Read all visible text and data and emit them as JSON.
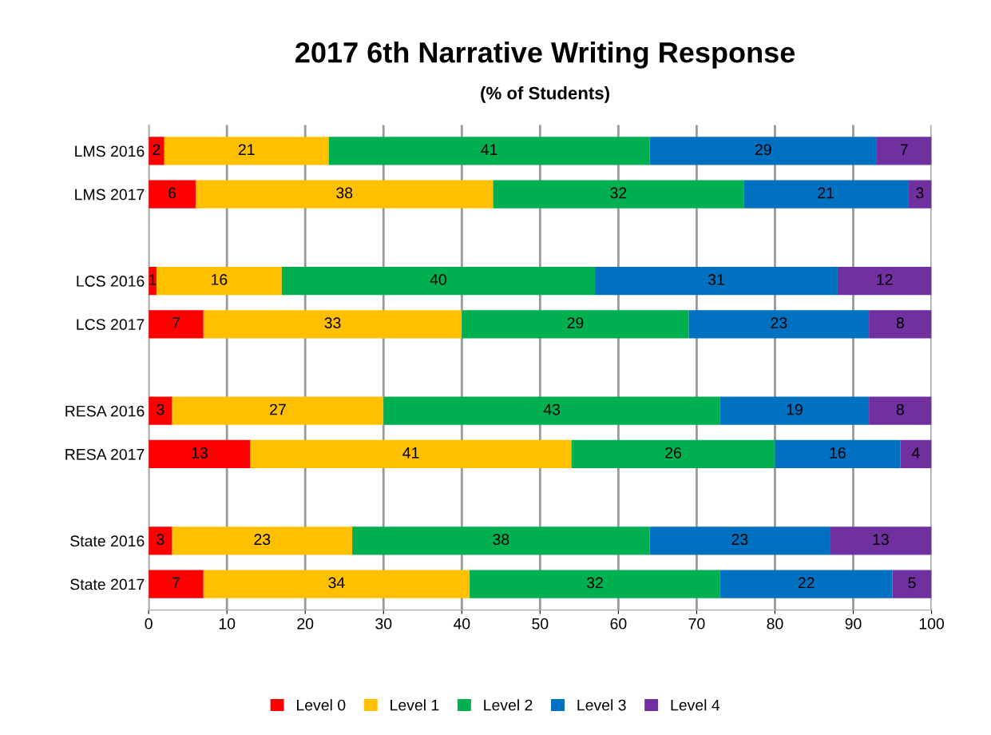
{
  "chart_data": {
    "type": "bar",
    "orientation": "horizontal",
    "stacked": true,
    "title": "2017 6th Narrative Writing Response",
    "subtitle": "(% of Students)",
    "categories": [
      "LMS 2016",
      "LMS 2017",
      null,
      "LCS 2016",
      "LCS 2017",
      null,
      "RESA 2016",
      "RESA 2017",
      null,
      "State 2016",
      "State 2017"
    ],
    "series": [
      {
        "name": "Level 0",
        "color": "#ff0000",
        "values": [
          2,
          6,
          null,
          1,
          7,
          null,
          3,
          13,
          null,
          3,
          7
        ]
      },
      {
        "name": "Level 1",
        "color": "#ffc000",
        "values": [
          21,
          38,
          null,
          16,
          33,
          null,
          27,
          41,
          null,
          23,
          34
        ]
      },
      {
        "name": "Level 2",
        "color": "#00b050",
        "values": [
          41,
          32,
          null,
          40,
          29,
          null,
          43,
          26,
          null,
          38,
          32
        ]
      },
      {
        "name": "Level 3",
        "color": "#0070c0",
        "values": [
          29,
          21,
          null,
          31,
          23,
          null,
          19,
          16,
          null,
          23,
          22
        ]
      },
      {
        "name": "Level 4",
        "color": "#7030a0",
        "values": [
          7,
          3,
          null,
          12,
          8,
          null,
          8,
          4,
          null,
          13,
          5
        ]
      }
    ],
    "xlim": [
      0,
      100
    ],
    "xticks": [
      0,
      10,
      20,
      30,
      40,
      50,
      60,
      70,
      80,
      90,
      100
    ],
    "grid": "x",
    "legend": "bottom",
    "data_labels": true
  }
}
